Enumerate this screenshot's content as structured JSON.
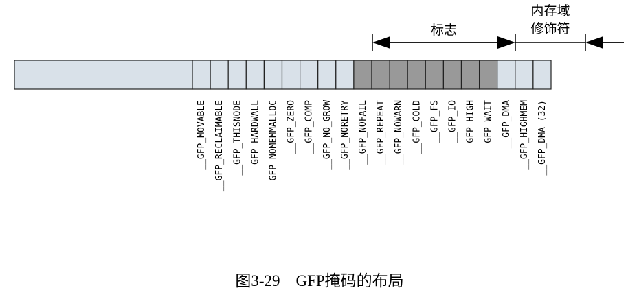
{
  "caption": "图3-29　GFP掩码的布局",
  "groups": {
    "flags": "标志",
    "zone_modifiers_line1": "内存域",
    "zone_modifiers_line2": "修饰符"
  },
  "colors": {
    "unused_cell": "#d9e1e9",
    "zone_cell": "#d9e1e9",
    "flag_cell": "#999999",
    "stroke": "#222222"
  },
  "bits": [
    {
      "label": "__GFP_MOVABLE",
      "kind": "zone"
    },
    {
      "label": "__GFP_RECLAIMABLE",
      "kind": "zone"
    },
    {
      "label": "__GFP_THISNODE",
      "kind": "zone"
    },
    {
      "label": "__GFP_HARDWALL",
      "kind": "zone"
    },
    {
      "label": "__GFP_NOMEMMALLOC",
      "kind": "zone"
    },
    {
      "label": "__GFP_ZERO",
      "kind": "zone"
    },
    {
      "label": "__GFP_COMP",
      "kind": "zone"
    },
    {
      "label": "__GFP_NO_GROW",
      "kind": "zone"
    },
    {
      "label": "__GFP_NORETRY",
      "kind": "zone"
    },
    {
      "label": "__GFP_NOFAIL",
      "kind": "flag"
    },
    {
      "label": "__GFP_REPEAT",
      "kind": "flag"
    },
    {
      "label": "__GFP_NOWARN",
      "kind": "flag"
    },
    {
      "label": "__GFP_COLD",
      "kind": "flag"
    },
    {
      "label": "__GFP_FS",
      "kind": "flag"
    },
    {
      "label": "__GFP_IO",
      "kind": "flag"
    },
    {
      "label": "__GFP_HIGH",
      "kind": "flag"
    },
    {
      "label": "__GFP_WAIT",
      "kind": "flag"
    },
    {
      "label": "__GFP_DMA",
      "kind": "zone"
    },
    {
      "label": "__GFP_HIGHMEM",
      "kind": "zone"
    },
    {
      "label": "__GFP_DMA (32)",
      "kind": "zone"
    }
  ]
}
